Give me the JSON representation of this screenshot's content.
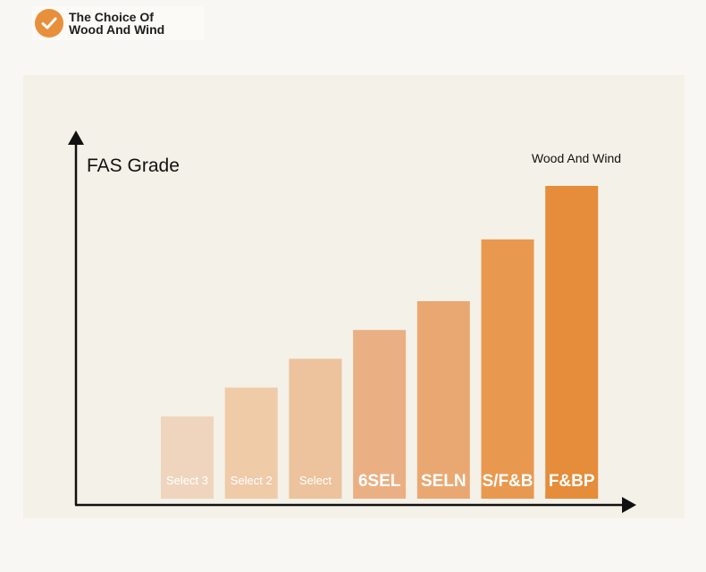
{
  "brand": {
    "line1": "The Choice Of",
    "line2": "Wood And Wind",
    "badge_icon": "check-icon",
    "badge_color": "#e88f3c"
  },
  "chart_data": {
    "type": "bar",
    "title": "FAS Grade",
    "annotation": "Wood And Wind",
    "categories": [
      "Select 3",
      "Select 2",
      "Select",
      "6SEL",
      "SELN",
      "S/F&B",
      "F&BP"
    ],
    "values": [
      1.0,
      1.35,
      1.7,
      2.05,
      2.4,
      3.15,
      3.8
    ],
    "colors": [
      "#efd5bd",
      "#efcba8",
      "#ecc39c",
      "#eab083",
      "#e9a872",
      "#e9994f",
      "#e58d3a"
    ],
    "axis_color": "#111111",
    "grid": false,
    "legend": "none"
  }
}
